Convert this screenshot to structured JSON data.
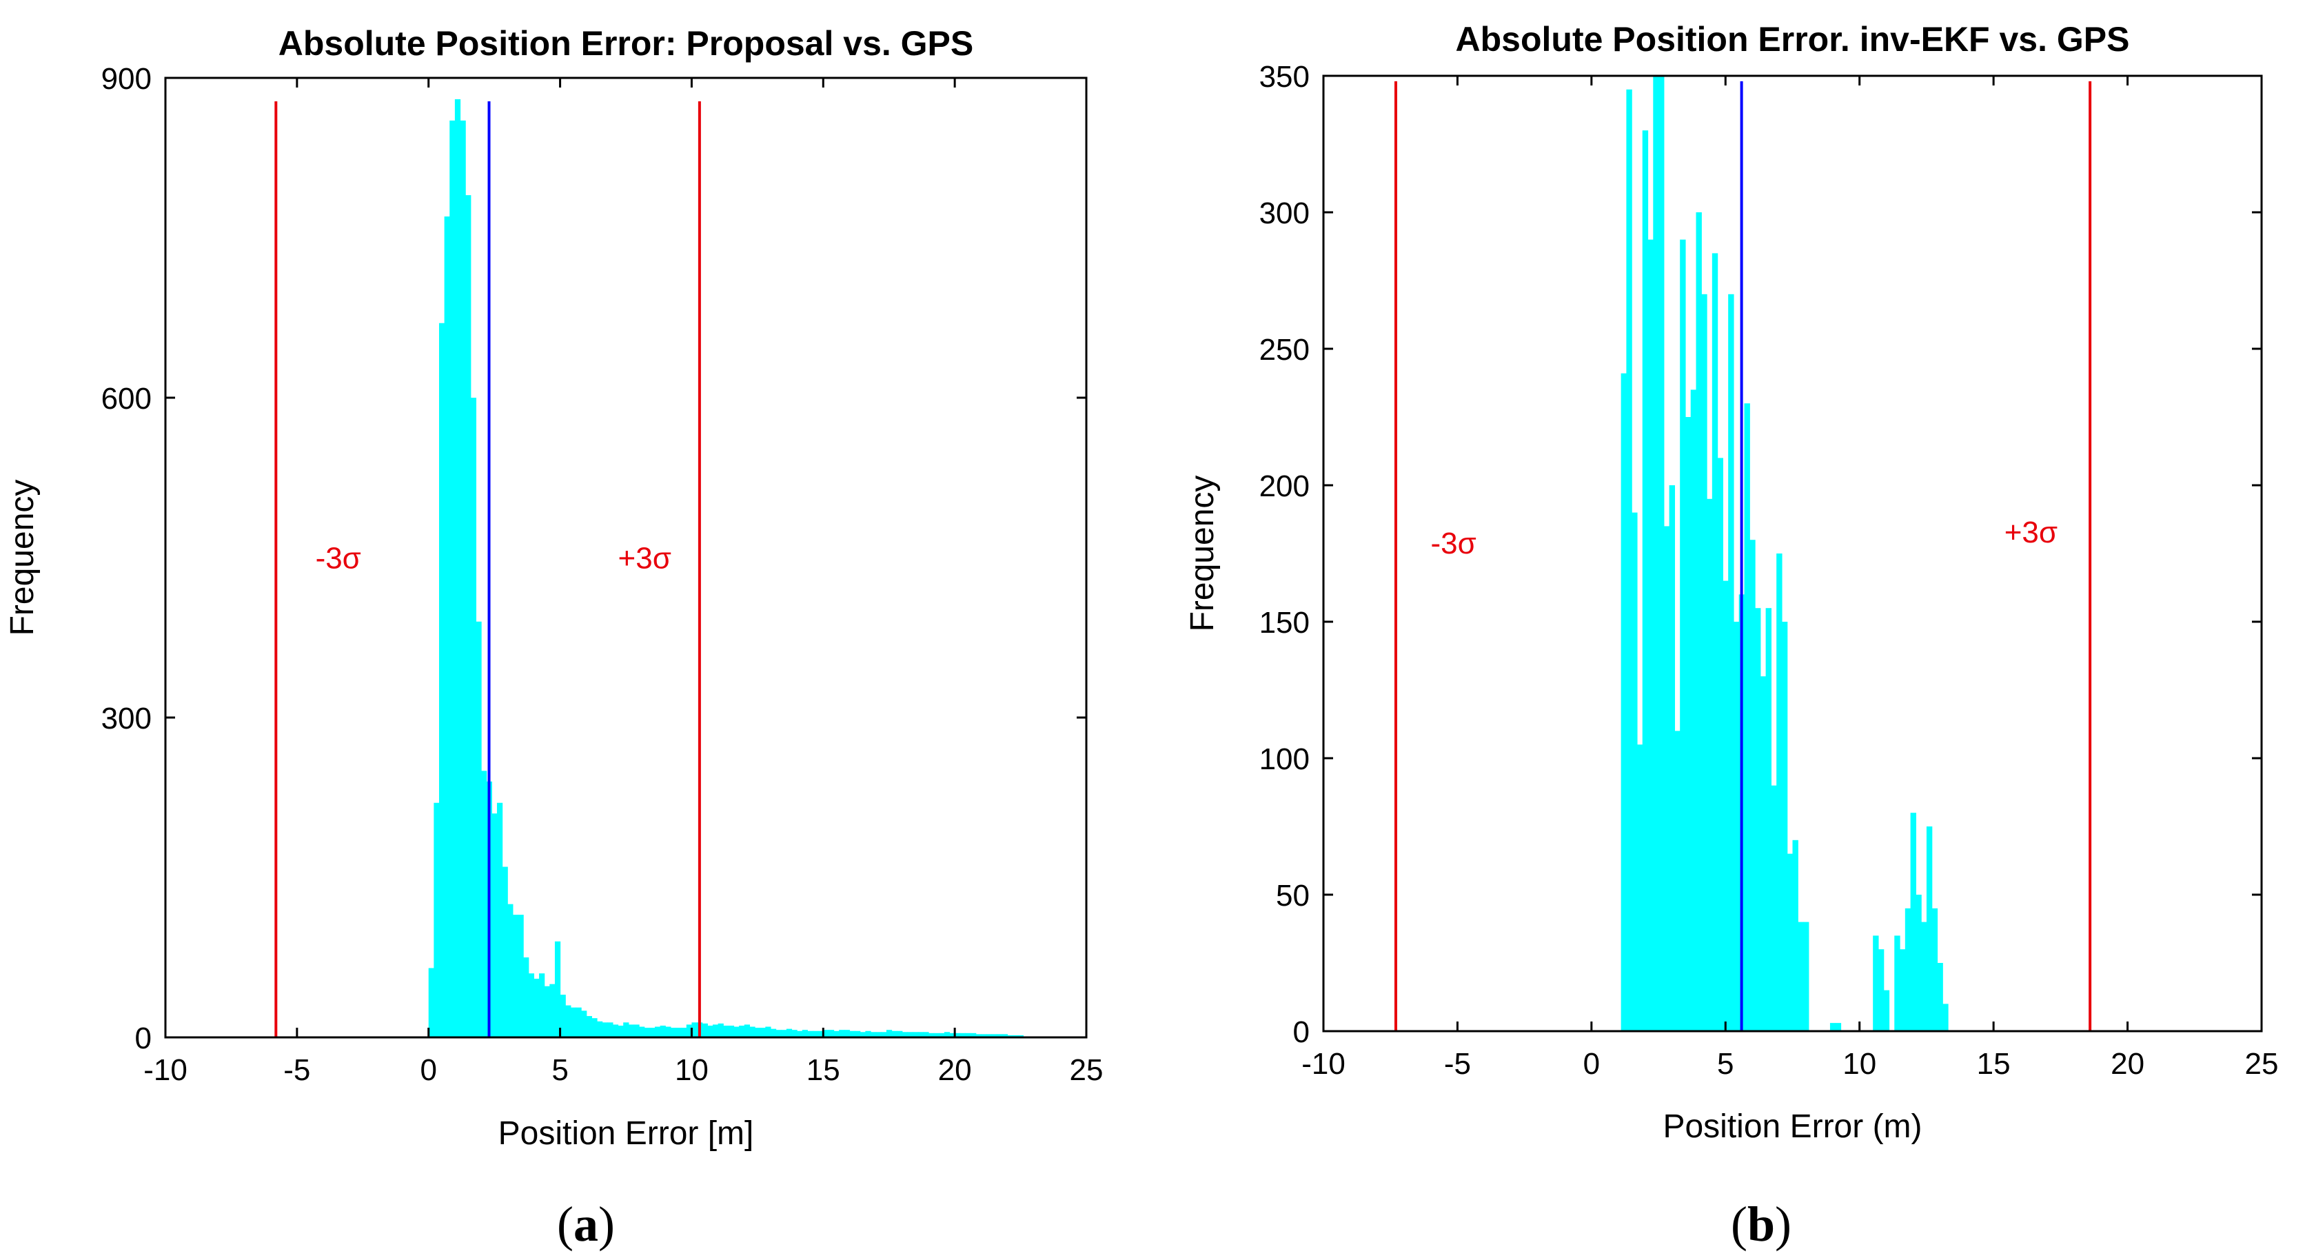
{
  "colors": {
    "bar": "#00FFFF",
    "sigma_line": "#E8000B",
    "mean_line": "#0000FF",
    "axis": "#000000"
  },
  "chart_data": [
    {
      "id": "a",
      "type": "bar",
      "title": "Absolute Position Error: Proposal vs. GPS",
      "xlabel": "Position Error [m]",
      "ylabel": "Frequency",
      "caption_open": "(",
      "caption_letter": "a",
      "caption_close": ")",
      "xlim": [
        -10,
        25
      ],
      "ylim": [
        0,
        900
      ],
      "xticks": [
        -10,
        -5,
        0,
        5,
        10,
        15,
        20,
        25
      ],
      "xtick_labels": [
        "-10",
        "-5",
        "0",
        "5",
        "10",
        "15",
        "20",
        "25"
      ],
      "yticks": [
        0,
        300,
        600,
        900
      ],
      "ytick_labels": [
        "0",
        "300",
        "600",
        "900"
      ],
      "bin_start": 0.0,
      "bin_width": 0.2,
      "values": [
        65,
        220,
        670,
        770,
        860,
        880,
        860,
        790,
        600,
        390,
        250,
        240,
        210,
        220,
        160,
        125,
        115,
        115,
        75,
        60,
        55,
        60,
        48,
        50,
        90,
        40,
        30,
        28,
        28,
        25,
        20,
        18,
        15,
        14,
        14,
        12,
        11,
        14,
        12,
        12,
        10,
        9,
        9,
        10,
        11,
        10,
        9,
        9,
        9,
        12,
        14,
        14,
        13,
        11,
        12,
        13,
        11,
        11,
        10,
        11,
        12,
        10,
        9,
        9,
        10,
        8,
        7,
        7,
        8,
        7,
        6,
        7,
        6,
        6,
        6,
        7,
        7,
        6,
        7,
        7,
        6,
        6,
        5,
        6,
        5,
        5,
        5,
        7,
        6,
        6,
        5,
        5,
        5,
        5,
        5,
        4,
        4,
        4,
        5,
        4,
        4,
        4,
        4,
        4,
        3,
        3,
        3,
        3,
        3,
        3,
        2,
        2,
        2
      ],
      "sigma_minus": -5.8,
      "sigma_plus": 10.3,
      "mean": 2.3,
      "line_top": 878,
      "sigma_minus_label": "-3σ",
      "sigma_plus_label": "+3σ",
      "sigma_label_y": 440,
      "sigma_minus_label_x": -4.3,
      "sigma_plus_label_x": 7.2
    },
    {
      "id": "b",
      "type": "bar",
      "title": "Absolute Position Error. inv-EKF vs. GPS",
      "xlabel": "Position Error (m)",
      "ylabel": "Frequency",
      "caption_open": "(",
      "caption_letter": "b",
      "caption_close": ")",
      "xlim": [
        -10,
        25
      ],
      "ylim": [
        0,
        350
      ],
      "xticks": [
        -10,
        -5,
        0,
        5,
        10,
        15,
        20,
        25
      ],
      "xtick_labels": [
        "-10",
        "-5",
        "0",
        "5",
        "10",
        "15",
        "20",
        "25"
      ],
      "yticks": [
        0,
        50,
        100,
        150,
        200,
        250,
        300,
        350
      ],
      "ytick_labels": [
        "0",
        "50",
        "100",
        "150",
        "200",
        "250",
        "300",
        "350"
      ],
      "bin_start": 1.1,
      "bin_width": 0.2,
      "values": [
        241,
        345,
        190,
        105,
        330,
        290,
        350,
        350,
        185,
        200,
        110,
        290,
        225,
        235,
        300,
        270,
        195,
        285,
        210,
        165,
        270,
        150,
        160,
        230,
        180,
        155,
        130,
        155,
        90,
        175,
        150,
        65,
        70,
        40,
        40,
        0,
        0,
        0,
        0,
        3,
        3,
        0,
        0,
        0,
        0,
        0,
        0,
        35,
        30,
        15,
        0,
        35,
        30,
        45,
        80,
        50,
        40,
        75,
        45,
        25,
        10,
        0,
        0,
        0,
        0,
        0,
        0,
        0,
        0,
        0,
        0,
        0,
        0,
        0,
        0,
        0,
        0,
        0,
        0,
        0,
        0,
        0,
        0,
        0
      ],
      "sigma_minus": -7.3,
      "sigma_plus": 18.6,
      "mean": 5.6,
      "line_top": 348,
      "sigma_minus_label": "-3σ",
      "sigma_plus_label": "+3σ",
      "sigma_minus_label_y": 175,
      "sigma_plus_label_y": 179,
      "sigma_minus_label_x": -6.0,
      "sigma_plus_label_x": 15.4
    }
  ]
}
